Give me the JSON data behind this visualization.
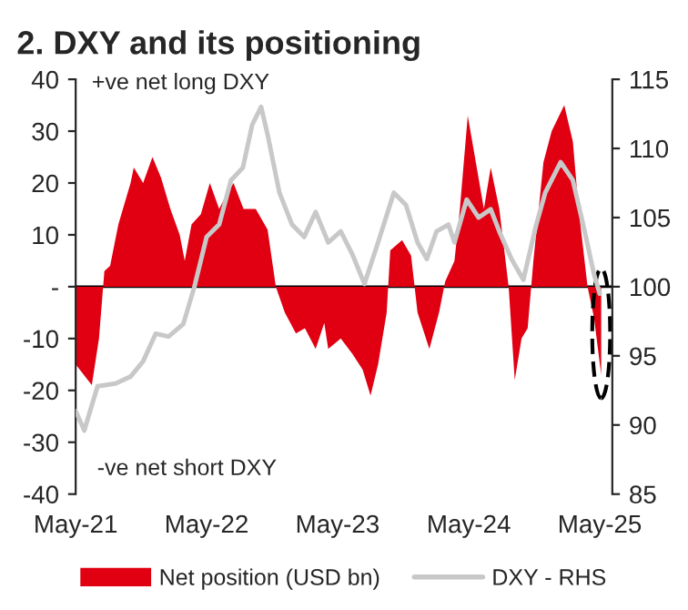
{
  "chart_data": {
    "type": "area",
    "title": "2. DXY and its positioning",
    "annotations": [
      "+ve net long DXY",
      "-ve net short DXY"
    ],
    "xlim": [
      "2021-05-01",
      "2025-06-05"
    ],
    "xticks": [
      {
        "value": "2021-05-01",
        "label": "May-21"
      },
      {
        "value": "2022-05-01",
        "label": "May-22"
      },
      {
        "value": "2023-05-01",
        "label": "May-23"
      },
      {
        "value": "2024-05-01",
        "label": "May-24"
      },
      {
        "value": "2025-05-01",
        "label": "May-25"
      }
    ],
    "ylim": [
      -40,
      40
    ],
    "yticks": [
      -40,
      -30,
      -20,
      -10,
      {
        "value": 0,
        "label": "-"
      },
      10,
      20,
      30,
      40
    ],
    "y2lim": [
      85,
      115
    ],
    "y2ticks": [
      85,
      90,
      95,
      100,
      105,
      110,
      115
    ],
    "grid": false,
    "legend": "bottom",
    "ref_lines": [
      {
        "axis": "y",
        "value": 0,
        "color": "#000000"
      }
    ],
    "series": [
      {
        "name": "Net position (USD bn)",
        "color": "#e00012",
        "x": [
          "2021-05-01",
          "2021-06-15",
          "2021-07-05",
          "2021-07-20",
          "2021-08-05",
          "2021-08-28",
          "2021-10-01",
          "2021-10-10",
          "2021-11-05",
          "2021-12-01",
          "2021-12-25",
          "2022-01-20",
          "2022-02-15",
          "2022-03-01",
          "2022-03-20",
          "2022-04-15",
          "2022-05-10",
          "2022-06-05",
          "2022-06-20",
          "2022-07-15",
          "2022-08-12",
          "2022-09-15",
          "2022-10-18",
          "2022-11-10",
          "2022-12-05",
          "2023-01-05",
          "2023-01-30",
          "2023-03-01",
          "2023-03-25",
          "2023-04-05",
          "2023-05-10",
          "2023-06-12",
          "2023-07-10",
          "2023-08-01",
          "2023-08-22",
          "2023-09-15",
          "2023-09-25",
          "2023-10-28",
          "2023-11-22",
          "2023-12-10",
          "2024-01-12",
          "2024-02-08",
          "2024-02-25",
          "2024-03-22",
          "2024-04-06",
          "2024-04-28",
          "2024-05-18",
          "2024-06-12",
          "2024-07-01",
          "2024-07-25",
          "2024-08-20",
          "2024-09-06",
          "2024-09-25",
          "2024-10-12",
          "2024-10-28",
          "2024-11-25",
          "2024-12-18",
          "2025-01-22",
          "2025-02-15",
          "2025-03-03",
          "2025-03-28",
          "2025-04-15",
          "2025-05-05"
        ],
        "values": [
          -15,
          -19,
          -10,
          3,
          4,
          12,
          20,
          23,
          20,
          25,
          21,
          15,
          10,
          5,
          12,
          14,
          20,
          15,
          17,
          20,
          15,
          15,
          11,
          0,
          -5,
          -9,
          -8,
          -12,
          -7,
          -12,
          -10,
          -13,
          -16,
          -21,
          -15,
          -5,
          7,
          9,
          6,
          -5,
          -12,
          -5,
          1,
          5,
          15,
          33,
          25,
          15,
          23,
          15,
          0,
          -18,
          -10,
          -8,
          5,
          24,
          30,
          35,
          28,
          15,
          0,
          -6,
          -17
        ]
      },
      {
        "name": "DXY - RHS",
        "type": "line",
        "axis": "y2",
        "color": "#c8c8c8",
        "x": [
          "2021-05-01",
          "2021-05-25",
          "2021-07-01",
          "2021-08-20",
          "2021-10-01",
          "2021-11-05",
          "2021-12-10",
          "2022-01-15",
          "2022-02-25",
          "2022-03-28",
          "2022-05-01",
          "2022-06-05",
          "2022-07-08",
          "2022-08-10",
          "2022-09-05",
          "2022-09-30",
          "2022-10-18",
          "2022-11-20",
          "2022-12-25",
          "2023-01-28",
          "2023-03-01",
          "2023-04-05",
          "2023-05-10",
          "2023-06-12",
          "2023-07-15",
          "2023-08-22",
          "2023-10-05",
          "2023-11-08",
          "2023-12-10",
          "2024-01-05",
          "2024-02-01",
          "2024-03-05",
          "2024-03-22",
          "2024-04-25",
          "2024-05-28",
          "2024-07-01",
          "2024-07-25",
          "2024-08-28",
          "2024-09-30",
          "2024-11-05",
          "2024-11-30",
          "2025-01-12",
          "2025-02-15",
          "2025-03-20",
          "2025-04-15",
          "2025-05-01"
        ],
        "values": [
          91,
          89.6,
          92.8,
          93,
          93.5,
          94.6,
          96.6,
          96.4,
          97.3,
          100,
          103.6,
          104.5,
          107.7,
          108.6,
          111.7,
          113,
          111,
          106.8,
          104.5,
          103.6,
          105.4,
          103.2,
          104,
          102.3,
          100.2,
          103.2,
          106.8,
          105.9,
          103.2,
          102,
          104,
          104.5,
          103.2,
          106.3,
          105,
          105.6,
          104,
          102,
          100.5,
          104.5,
          106.8,
          109,
          107.7,
          104,
          100.9,
          99.5
        ]
      }
    ]
  }
}
